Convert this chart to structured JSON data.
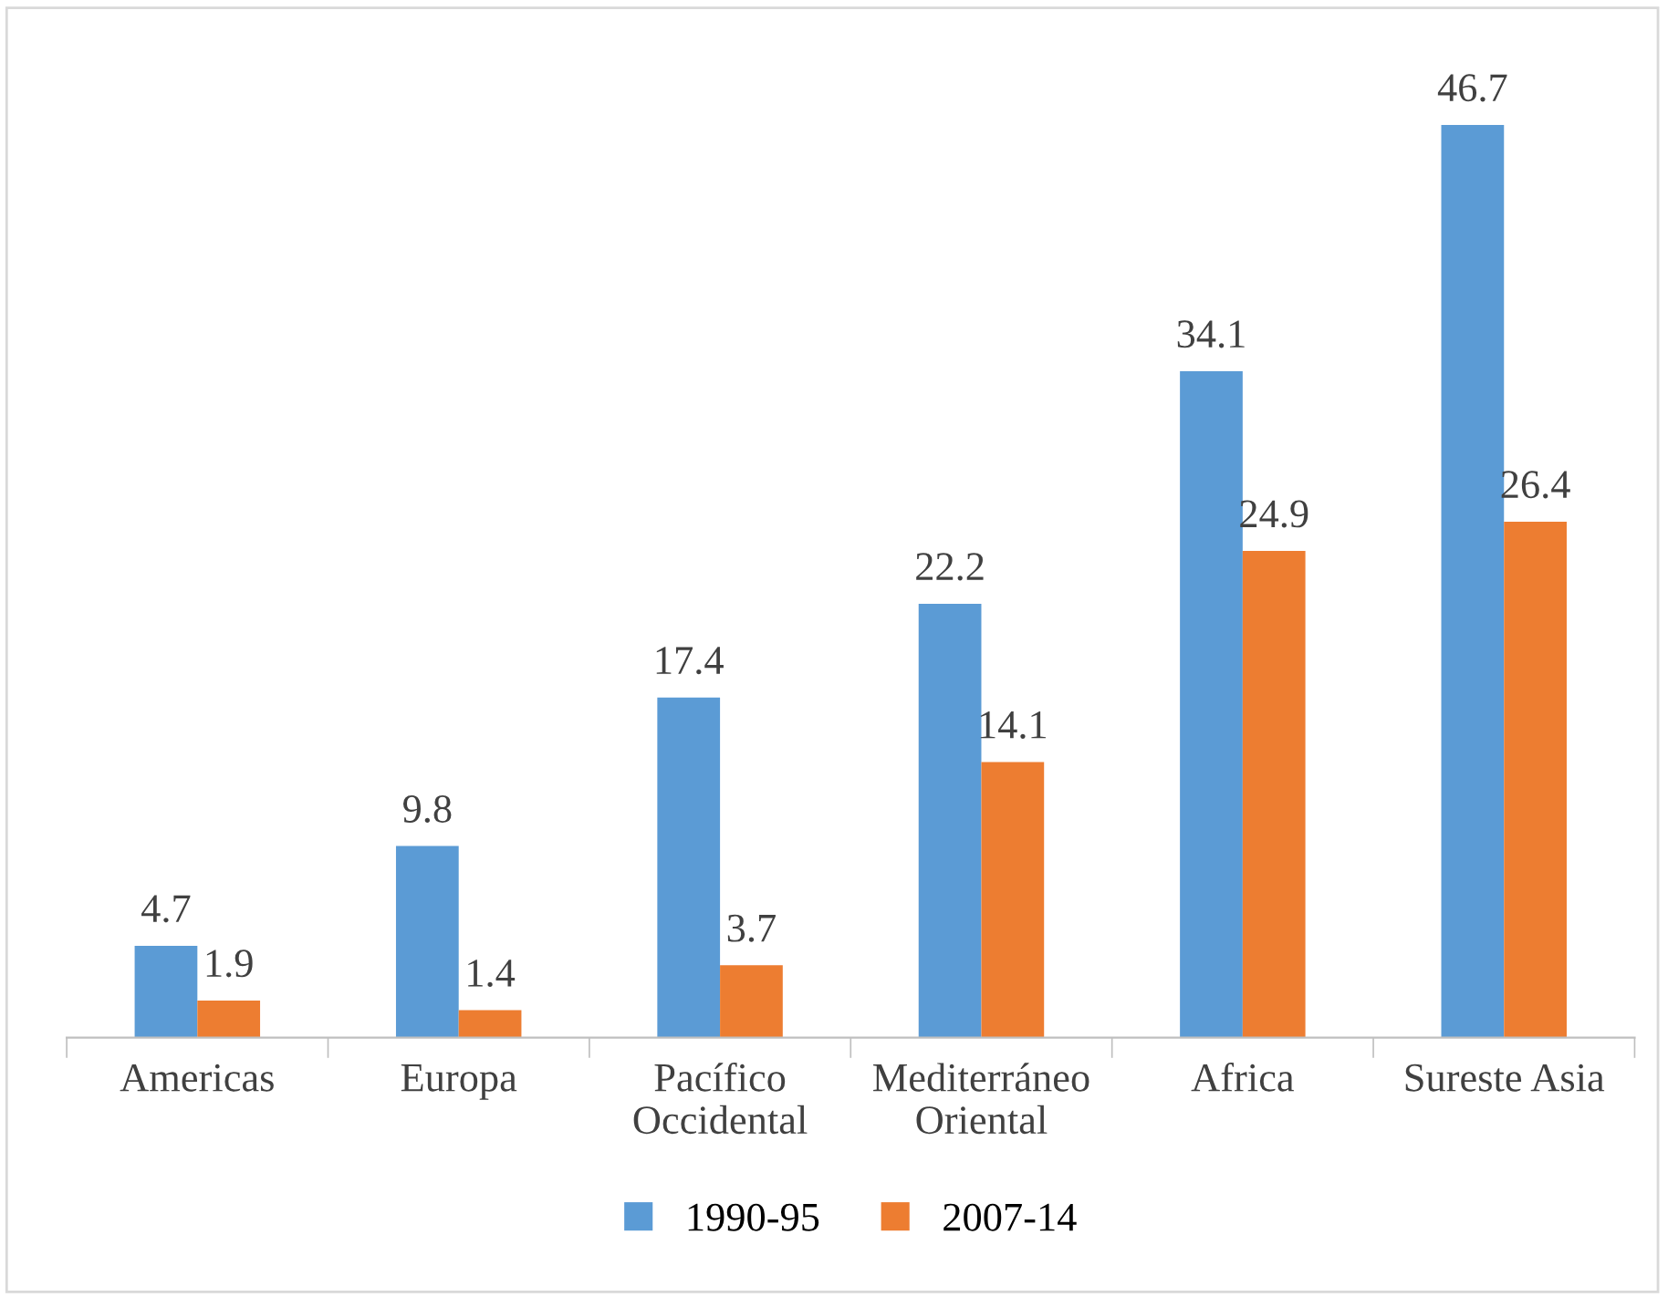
{
  "chart_data": {
    "type": "bar",
    "categories": [
      "Americas",
      "Europa",
      "Pacífico Occidental",
      "Mediterráneo Oriental",
      "Africa",
      "Sureste Asia"
    ],
    "series": [
      {
        "name": "1990-95",
        "color": "#5b9bd5",
        "values": [
          4.7,
          9.8,
          17.4,
          22.2,
          34.1,
          46.7
        ]
      },
      {
        "name": "2007-14",
        "color": "#ed7d31",
        "values": [
          1.9,
          1.4,
          3.7,
          14.1,
          24.9,
          26.4
        ]
      }
    ],
    "data_labels": true,
    "legend": "bottom",
    "grid": false
  }
}
